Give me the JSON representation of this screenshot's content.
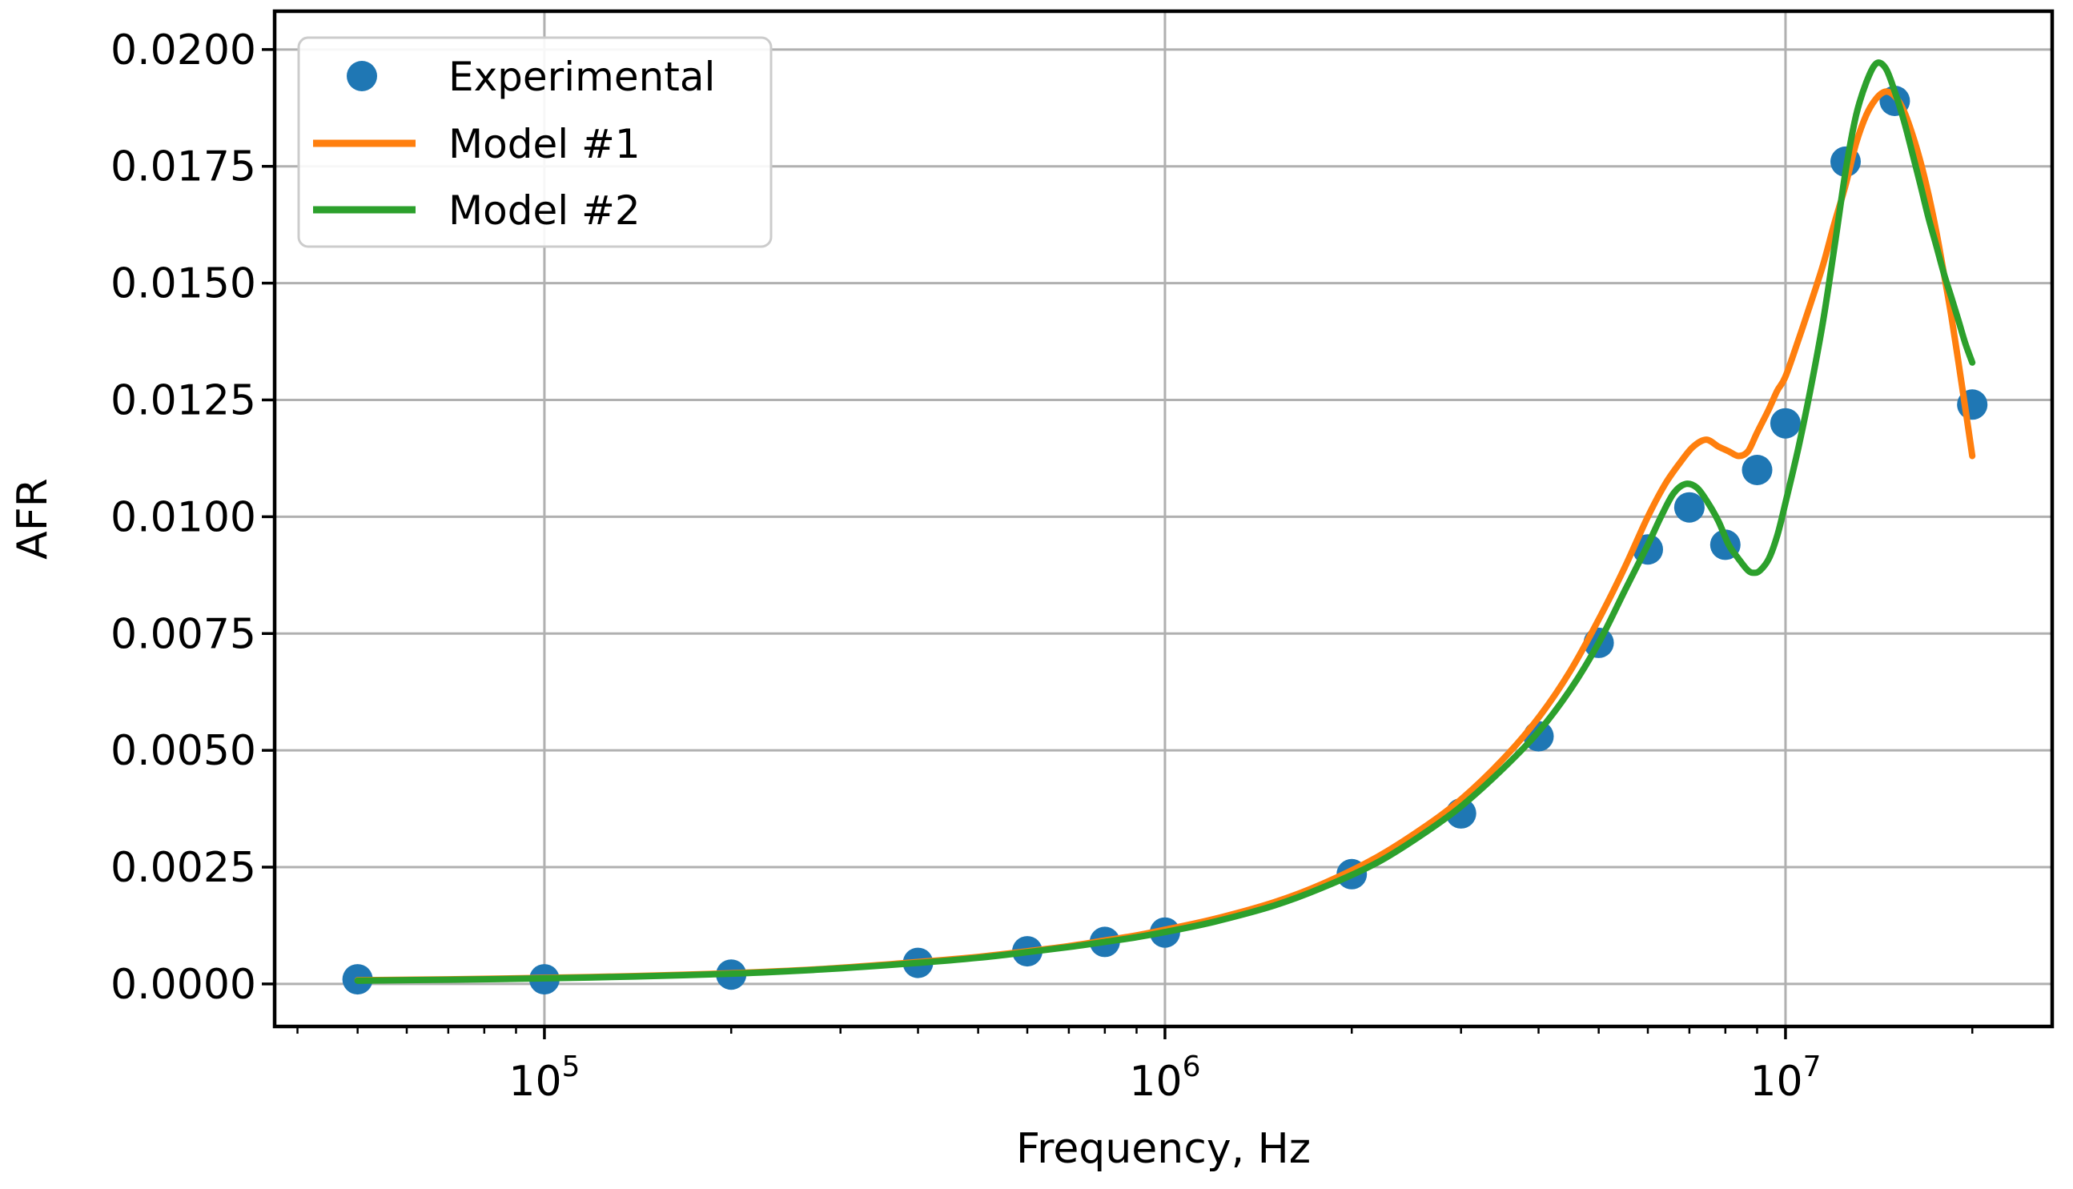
{
  "chart_data": {
    "type": "scatter",
    "title": "",
    "xlabel": "Frequency, Hz",
    "ylabel": "AFR",
    "x_scale": "log",
    "xlim": [
      36750,
      26900000
    ],
    "ylim": [
      -0.00091,
      0.02082
    ],
    "grid": true,
    "legend_position": "upper left",
    "x_major_ticks": [
      100000,
      1000000,
      10000000
    ],
    "x_major_tick_labels": [
      {
        "base": "10",
        "exp": "5"
      },
      {
        "base": "10",
        "exp": "6"
      },
      {
        "base": "10",
        "exp": "7"
      }
    ],
    "x_minor_ticks": [
      40000,
      50000,
      60000,
      70000,
      80000,
      90000,
      200000,
      300000,
      400000,
      500000,
      600000,
      700000,
      800000,
      900000,
      2000000,
      3000000,
      4000000,
      5000000,
      6000000,
      7000000,
      8000000,
      9000000,
      20000000
    ],
    "y_ticks": [
      0.0,
      0.0025,
      0.005,
      0.0075,
      0.01,
      0.0125,
      0.015,
      0.0175,
      0.02
    ],
    "y_tick_labels": [
      "0.0000",
      "0.0025",
      "0.0050",
      "0.0075",
      "0.0100",
      "0.0125",
      "0.0150",
      "0.0175",
      "0.0200"
    ],
    "series": [
      {
        "name": "Experimental",
        "type": "scatter",
        "color": "#1f77b4",
        "marker": "circle",
        "x": [
          50000,
          100000,
          200000,
          400000,
          600000,
          800000,
          1000000,
          2000000,
          3000000,
          4000000,
          5000000,
          6000000,
          7000000,
          8000000,
          9000000,
          10000000,
          12500000,
          15000000,
          20000000
        ],
        "y": [
          0.0001,
          0.0001,
          0.0002,
          0.00045,
          0.0007,
          0.0009,
          0.0011,
          0.00235,
          0.00365,
          0.0053,
          0.0073,
          0.0093,
          0.0102,
          0.0094,
          0.011,
          0.012,
          0.0176,
          0.0189,
          0.0124
        ]
      },
      {
        "name": "Model #1",
        "type": "line",
        "color": "#ff7f0e",
        "x": [
          50000,
          70000,
          100000,
          140000,
          200000,
          280000,
          400000,
          500000,
          600000,
          700000,
          800000,
          900000,
          1000000,
          1200000,
          1500000,
          1800000,
          2200000,
          2600000,
          3000000,
          3500000,
          4000000,
          4500000,
          5000000,
          5500000,
          6000000,
          6400000,
          6800000,
          7100000,
          7450000,
          7800000,
          8100000,
          8400000,
          8700000,
          9000000,
          9400000,
          9700000,
          10000000,
          10500000,
          11000000,
          11500000,
          12000000,
          12500000,
          13000000,
          13500000,
          14000000,
          14500000,
          15000000,
          15500000,
          16000000,
          16500000,
          17000000,
          17500000,
          18000000,
          18500000,
          19000000,
          19500000,
          20000000
        ],
        "y": [
          8e-05,
          0.0001,
          0.00013,
          0.00017,
          0.00023,
          0.00032,
          0.00047,
          0.00058,
          0.0007,
          0.00081,
          0.00093,
          0.00104,
          0.00116,
          0.00139,
          0.00175,
          0.00215,
          0.00272,
          0.00333,
          0.00395,
          0.0048,
          0.0057,
          0.0067,
          0.0078,
          0.0089,
          0.01,
          0.0107,
          0.0112,
          0.0115,
          0.01165,
          0.0115,
          0.0114,
          0.0113,
          0.0114,
          0.0118,
          0.0123,
          0.0127,
          0.013,
          0.0138,
          0.0146,
          0.0154,
          0.0163,
          0.0171,
          0.018,
          0.0186,
          0.01895,
          0.0191,
          0.019,
          0.0187,
          0.0182,
          0.0176,
          0.0169,
          0.0161,
          0.0152,
          0.0143,
          0.0133,
          0.0123,
          0.0113
        ]
      },
      {
        "name": "Model #2",
        "type": "line",
        "color": "#2ca02c",
        "x": [
          50000,
          70000,
          100000,
          140000,
          200000,
          280000,
          400000,
          500000,
          600000,
          700000,
          800000,
          900000,
          1000000,
          1200000,
          1500000,
          1800000,
          2200000,
          2600000,
          3000000,
          3500000,
          4000000,
          4500000,
          5000000,
          5500000,
          6000000,
          6300000,
          6600000,
          6900000,
          7200000,
          7500000,
          7800000,
          8100000,
          8400000,
          8700000,
          8900000,
          9100000,
          9400000,
          9700000,
          10000000,
          10500000,
          11000000,
          11500000,
          12000000,
          12500000,
          13000000,
          13500000,
          14000000,
          14500000,
          15000000,
          15500000,
          16000000,
          16500000,
          17000000,
          17500000,
          18000000,
          18500000,
          19000000,
          19500000,
          20000000
        ],
        "y": [
          7e-05,
          9e-05,
          0.00012,
          0.00016,
          0.00022,
          0.00031,
          0.00045,
          0.00056,
          0.00068,
          0.00079,
          0.0009,
          0.001,
          0.00111,
          0.00133,
          0.00168,
          0.00207,
          0.0026,
          0.0032,
          0.0038,
          0.0046,
          0.0054,
          0.0063,
          0.0073,
          0.0084,
          0.0094,
          0.01,
          0.0105,
          0.0107,
          0.01062,
          0.0103,
          0.0099,
          0.0094,
          0.0091,
          0.00885,
          0.0088,
          0.00885,
          0.0091,
          0.0096,
          0.0103,
          0.0115,
          0.0128,
          0.0142,
          0.0158,
          0.0174,
          0.0186,
          0.0193,
          0.0197,
          0.0196,
          0.0191,
          0.0185,
          0.0178,
          0.0171,
          0.0164,
          0.0158,
          0.0152,
          0.0147,
          0.0142,
          0.0137,
          0.0133
        ]
      }
    ]
  },
  "style_colors": {
    "background": "#ffffff",
    "grid": "#b0b0b0",
    "spine": "#000000",
    "tick": "#000000",
    "legend_border": "#cccccc",
    "legend_fill": "#ffffff"
  }
}
